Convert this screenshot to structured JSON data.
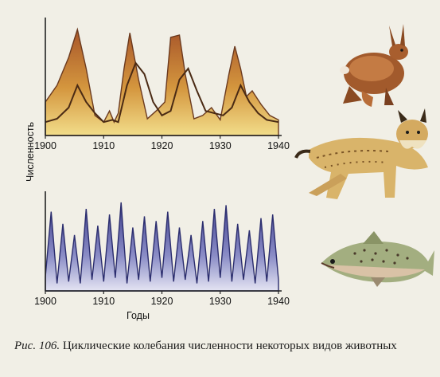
{
  "figure": {
    "caption_prefix": "Рис. 106.",
    "caption_text": "Циклические колебания численности некоторых видов животных"
  },
  "animals": [
    "hare-illustration",
    "lynx-illustration",
    "fish-illustration"
  ],
  "colors": {
    "prey_fill": "#c98a3a",
    "prey_line": "#6b3a1f",
    "predator_line": "#4a2a14",
    "wave_fill": "#6a6fae",
    "wave_line": "#2b2d6e",
    "axis": "#222222"
  },
  "chart_data": [
    {
      "type": "area",
      "title": "",
      "xlabel": "",
      "ylabel": "Численность",
      "xlim": [
        1900,
        1940
      ],
      "ylim": [
        0,
        100
      ],
      "x_ticks": [
        "1900",
        "1910",
        "1920",
        "1930",
        "1940"
      ],
      "series": [
        {
          "style": "filled-area",
          "x": [
            1900,
            1902,
            1904,
            1905.5,
            1907,
            1908.5,
            1910,
            1911,
            1911.8,
            1912.5,
            1913.5,
            1914.5,
            1916,
            1917.5,
            1919,
            1920.5,
            1921.5,
            1923,
            1924,
            1925.5,
            1927,
            1928.5,
            1930,
            1931.5,
            1932.5,
            1933.5,
            1934.5,
            1935.5,
            1937,
            1938.5,
            1940
          ],
          "y": [
            30,
            45,
            70,
            95,
            60,
            18,
            12,
            22,
            12,
            20,
            60,
            92,
            50,
            15,
            22,
            30,
            88,
            90,
            55,
            15,
            18,
            25,
            14,
            55,
            80,
            60,
            35,
            40,
            28,
            18,
            14
          ]
        },
        {
          "style": "line",
          "x": [
            1900,
            1902,
            1904,
            1905.5,
            1907,
            1908.5,
            1910,
            1911.5,
            1912.5,
            1914,
            1915.5,
            1917,
            1918.5,
            1920,
            1921.5,
            1923,
            1924.5,
            1926,
            1927.5,
            1929,
            1930.5,
            1932,
            1933.5,
            1935,
            1936.5,
            1938,
            1940
          ],
          "y": [
            12,
            15,
            25,
            45,
            30,
            20,
            12,
            14,
            12,
            45,
            65,
            55,
            30,
            18,
            22,
            50,
            60,
            40,
            22,
            20,
            18,
            25,
            45,
            30,
            20,
            14,
            12
          ]
        }
      ]
    },
    {
      "type": "area",
      "title": "",
      "xlabel": "Годы",
      "ylabel": "",
      "xlim": [
        1900,
        1940
      ],
      "ylim": [
        0,
        100
      ],
      "x_ticks": [
        "1900",
        "1910",
        "1920",
        "1930",
        "1940"
      ],
      "series": [
        {
          "style": "zigzag-area",
          "x": [
            1900,
            1901,
            1902,
            1903,
            1904,
            1905,
            1906,
            1907,
            1908,
            1909,
            1910,
            1911,
            1912,
            1913,
            1914,
            1915,
            1916,
            1917,
            1918,
            1919,
            1920,
            1921,
            1922,
            1923,
            1924,
            1925,
            1926,
            1927,
            1928,
            1929,
            1930,
            1931,
            1932,
            1933,
            1934,
            1935,
            1936,
            1937,
            1938,
            1939,
            1940
          ],
          "y": [
            15,
            85,
            8,
            72,
            10,
            60,
            8,
            88,
            12,
            70,
            10,
            82,
            14,
            95,
            8,
            68,
            12,
            80,
            10,
            75,
            14,
            85,
            10,
            68,
            12,
            60,
            8,
            75,
            10,
            88,
            14,
            92,
            10,
            72,
            12,
            65,
            8,
            78,
            10,
            82,
            12
          ]
        }
      ]
    }
  ]
}
